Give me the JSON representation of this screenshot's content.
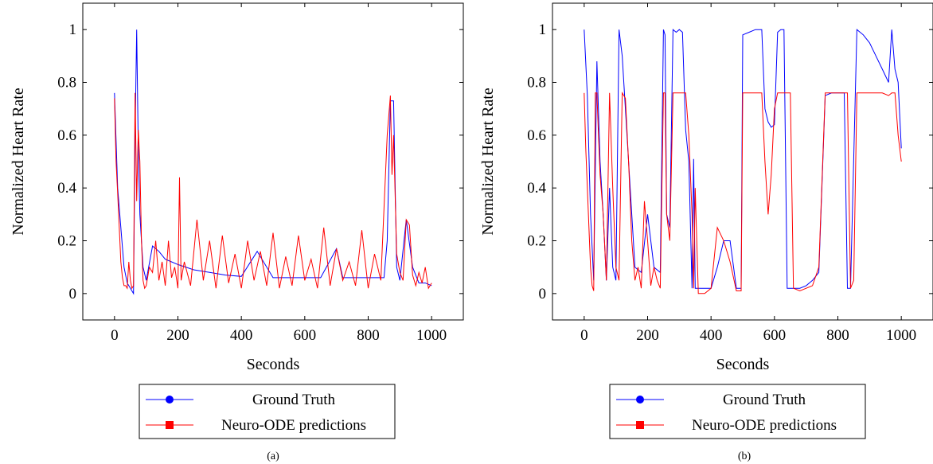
{
  "colors": {
    "ground_truth": "#0000ff",
    "predictions": "#ff0000",
    "axis": "#000000"
  },
  "chart_data": [
    {
      "type": "line",
      "caption": "(a)",
      "xlabel": "Seconds",
      "ylabel": "Normalized Heart Rate",
      "xlim": [
        -100,
        1100
      ],
      "ylim": [
        -0.1,
        1.1
      ],
      "xticks": [
        0,
        200,
        400,
        600,
        800,
        1000
      ],
      "yticks": [
        0,
        0.2,
        0.4,
        0.6,
        0.8,
        1
      ],
      "grid": false,
      "legend": "below",
      "series": [
        {
          "name": "Ground Truth",
          "marker": "circle",
          "color": "#0000ff",
          "x": [
            0,
            10,
            20,
            30,
            40,
            50,
            60,
            65,
            70,
            75,
            80,
            90,
            100,
            120,
            140,
            160,
            180,
            200,
            250,
            300,
            350,
            400,
            450,
            500,
            550,
            600,
            650,
            700,
            720,
            750,
            800,
            850,
            860,
            870,
            880,
            890,
            900,
            920,
            940,
            960,
            980,
            1000
          ],
          "y": [
            0.76,
            0.4,
            0.25,
            0.1,
            0.04,
            0.02,
            0.0,
            0.6,
            1.0,
            0.55,
            0.3,
            0.1,
            0.05,
            0.18,
            0.16,
            0.13,
            0.12,
            0.11,
            0.09,
            0.08,
            0.07,
            0.065,
            0.16,
            0.06,
            0.06,
            0.06,
            0.06,
            0.17,
            0.06,
            0.06,
            0.06,
            0.06,
            0.2,
            0.73,
            0.73,
            0.1,
            0.05,
            0.28,
            0.1,
            0.04,
            0.04,
            0.03
          ]
        },
        {
          "name": "Neuro-ODE predictions",
          "marker": "square",
          "color": "#ff0000",
          "x": [
            0,
            5,
            10,
            15,
            20,
            25,
            30,
            35,
            40,
            45,
            50,
            55,
            60,
            65,
            70,
            75,
            80,
            85,
            90,
            95,
            100,
            110,
            120,
            130,
            140,
            150,
            160,
            170,
            180,
            190,
            200,
            205,
            210,
            220,
            240,
            260,
            280,
            300,
            320,
            340,
            360,
            380,
            400,
            420,
            440,
            460,
            480,
            500,
            520,
            540,
            560,
            580,
            600,
            620,
            640,
            660,
            680,
            700,
            720,
            740,
            760,
            780,
            800,
            820,
            840,
            860,
            870,
            875,
            880,
            890,
            900,
            910,
            920,
            930,
            940,
            950,
            960,
            970,
            980,
            990,
            1000
          ],
          "y": [
            0.74,
            0.5,
            0.38,
            0.25,
            0.12,
            0.06,
            0.03,
            0.03,
            0.02,
            0.12,
            0.05,
            0.02,
            0.03,
            0.76,
            0.35,
            0.62,
            0.5,
            0.2,
            0.05,
            0.02,
            0.03,
            0.1,
            0.08,
            0.2,
            0.05,
            0.12,
            0.03,
            0.2,
            0.06,
            0.1,
            0.02,
            0.44,
            0.05,
            0.12,
            0.03,
            0.28,
            0.05,
            0.2,
            0.02,
            0.22,
            0.04,
            0.15,
            0.02,
            0.2,
            0.05,
            0.16,
            0.03,
            0.23,
            0.02,
            0.14,
            0.03,
            0.22,
            0.05,
            0.13,
            0.02,
            0.25,
            0.03,
            0.17,
            0.05,
            0.12,
            0.03,
            0.24,
            0.02,
            0.15,
            0.05,
            0.6,
            0.75,
            0.45,
            0.6,
            0.15,
            0.08,
            0.05,
            0.28,
            0.26,
            0.07,
            0.03,
            0.08,
            0.04,
            0.1,
            0.02,
            0.04
          ]
        }
      ]
    },
    {
      "type": "line",
      "caption": "(b)",
      "xlabel": "Seconds",
      "ylabel": "Normalized Heart Rate",
      "xlim": [
        -100,
        1100
      ],
      "ylim": [
        -0.1,
        1.1
      ],
      "xticks": [
        0,
        200,
        400,
        600,
        800,
        1000
      ],
      "yticks": [
        0,
        0.2,
        0.4,
        0.6,
        0.8,
        1
      ],
      "grid": false,
      "legend": "below",
      "series": [
        {
          "name": "Ground Truth",
          "marker": "circle",
          "color": "#0000ff",
          "x": [
            0,
            10,
            20,
            30,
            40,
            50,
            60,
            70,
            80,
            90,
            100,
            110,
            120,
            130,
            140,
            150,
            160,
            180,
            200,
            220,
            240,
            250,
            255,
            260,
            270,
            280,
            290,
            300,
            310,
            320,
            330,
            340,
            345,
            350,
            360,
            380,
            400,
            420,
            440,
            460,
            480,
            495,
            500,
            520,
            540,
            560,
            570,
            580,
            590,
            600,
            610,
            620,
            630,
            640,
            650,
            660,
            680,
            700,
            720,
            740,
            760,
            780,
            800,
            820,
            830,
            840,
            860,
            870,
            880,
            900,
            920,
            940,
            960,
            970,
            980,
            990,
            1000
          ],
          "y": [
            1.0,
            0.75,
            0.3,
            0.05,
            0.88,
            0.5,
            0.3,
            0.05,
            0.4,
            0.1,
            0.05,
            1.0,
            0.9,
            0.7,
            0.5,
            0.3,
            0.1,
            0.08,
            0.3,
            0.1,
            0.08,
            1.0,
            0.98,
            0.3,
            0.25,
            1.0,
            0.99,
            1.0,
            0.99,
            0.62,
            0.5,
            0.02,
            0.51,
            0.02,
            0.02,
            0.02,
            0.02,
            0.1,
            0.2,
            0.2,
            0.02,
            0.02,
            0.98,
            0.99,
            1.0,
            1.0,
            0.7,
            0.65,
            0.63,
            0.64,
            0.99,
            1.0,
            1.0,
            0.02,
            0.02,
            0.02,
            0.02,
            0.03,
            0.05,
            0.08,
            0.75,
            0.76,
            0.76,
            0.76,
            0.02,
            0.02,
            1.0,
            0.99,
            0.98,
            0.95,
            0.9,
            0.85,
            0.8,
            1.0,
            0.85,
            0.8,
            0.55
          ]
        },
        {
          "name": "Neuro-ODE predictions",
          "marker": "square",
          "color": "#ff0000",
          "x": [
            0,
            5,
            10,
            15,
            20,
            25,
            30,
            35,
            40,
            45,
            50,
            60,
            70,
            80,
            90,
            100,
            110,
            120,
            130,
            140,
            150,
            160,
            170,
            180,
            190,
            200,
            210,
            220,
            230,
            240,
            250,
            255,
            260,
            270,
            280,
            290,
            300,
            310,
            320,
            330,
            340,
            345,
            350,
            360,
            380,
            400,
            420,
            440,
            460,
            480,
            495,
            500,
            520,
            540,
            560,
            570,
            580,
            590,
            600,
            610,
            620,
            640,
            650,
            660,
            680,
            700,
            720,
            740,
            760,
            780,
            800,
            820,
            830,
            840,
            850,
            860,
            880,
            900,
            920,
            940,
            960,
            970,
            980,
            990,
            1000
          ],
          "y": [
            0.76,
            0.55,
            0.4,
            0.25,
            0.1,
            0.03,
            0.01,
            0.76,
            0.76,
            0.6,
            0.45,
            0.3,
            0.05,
            0.76,
            0.4,
            0.1,
            0.05,
            0.76,
            0.74,
            0.5,
            0.2,
            0.05,
            0.1,
            0.02,
            0.35,
            0.2,
            0.03,
            0.1,
            0.05,
            0.02,
            0.76,
            0.76,
            0.3,
            0.2,
            0.76,
            0.76,
            0.76,
            0.76,
            0.76,
            0.6,
            0.3,
            0.02,
            0.4,
            0.0,
            0.0,
            0.02,
            0.25,
            0.2,
            0.12,
            0.01,
            0.01,
            0.76,
            0.76,
            0.76,
            0.76,
            0.5,
            0.3,
            0.45,
            0.7,
            0.76,
            0.76,
            0.76,
            0.76,
            0.02,
            0.01,
            0.02,
            0.03,
            0.1,
            0.76,
            0.76,
            0.76,
            0.76,
            0.76,
            0.02,
            0.05,
            0.76,
            0.76,
            0.76,
            0.76,
            0.76,
            0.75,
            0.76,
            0.76,
            0.6,
            0.5
          ]
        }
      ]
    }
  ]
}
